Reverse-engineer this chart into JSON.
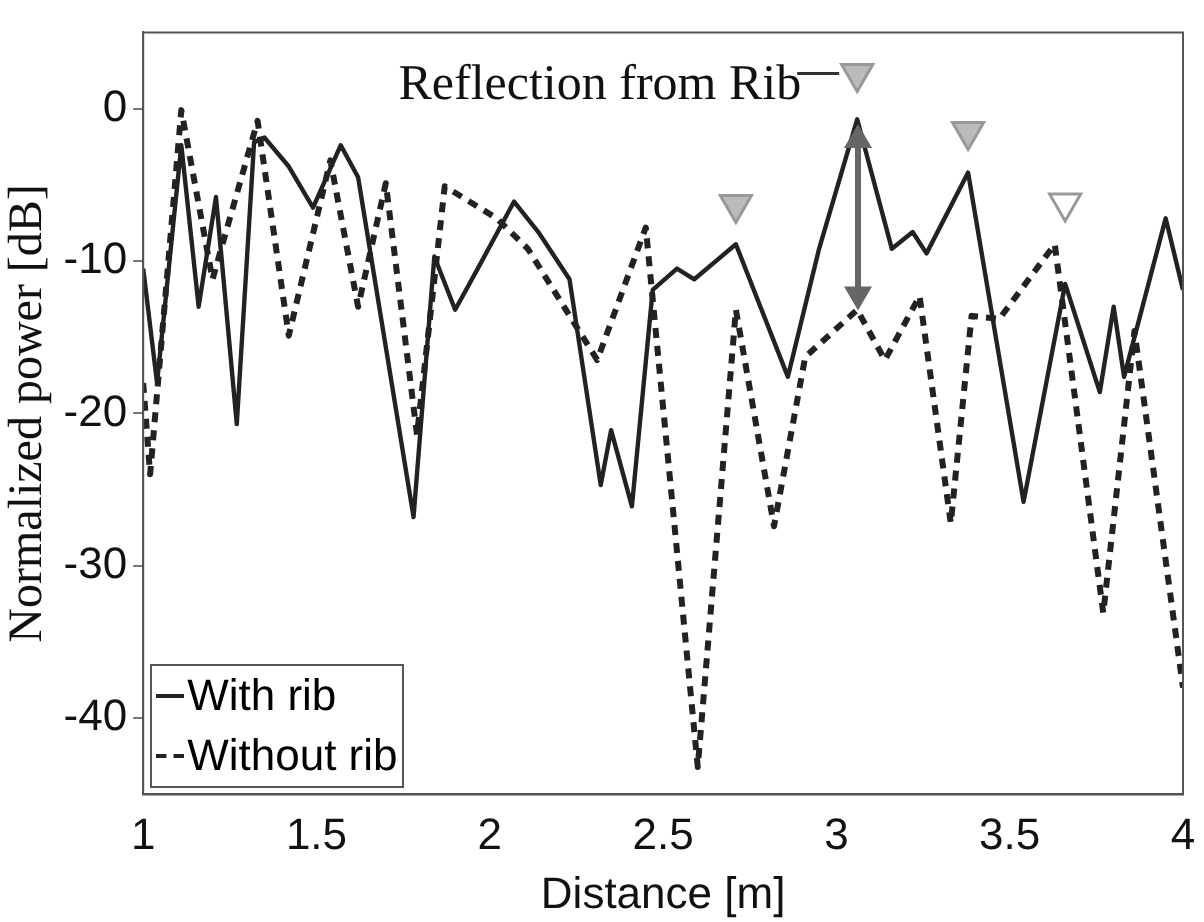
{
  "chart_data": {
    "type": "line",
    "xlabel": "Distance [m]",
    "ylabel": "Normalized power [dB]",
    "xlim": [
      1,
      4
    ],
    "xticks": [
      1,
      1.5,
      2,
      2.5,
      3,
      3.5,
      4
    ],
    "ylim": [
      -45,
      5
    ],
    "yticks": [
      -40,
      -30,
      -20,
      -10,
      0
    ],
    "legend": "bottom left",
    "grid": false,
    "marker": "none",
    "annotations": [
      {
        "text": "Reflection from Rib",
        "x": 3.06,
        "y": 2.3
      }
    ],
    "series": [
      {
        "name": "With rib",
        "color": "#222222",
        "line_style": "solid",
        "x": [
          1.0,
          1.04,
          1.11,
          1.16,
          1.21,
          1.27,
          1.32,
          1.35,
          1.42,
          1.49,
          1.57,
          1.62,
          1.78,
          1.84,
          1.9,
          1.97,
          2.07,
          2.14,
          2.23,
          2.32,
          2.35,
          2.41,
          2.47,
          2.54,
          2.59,
          2.71,
          2.86,
          2.95,
          3.06,
          3.16,
          3.22,
          3.26,
          3.38,
          3.54,
          3.66,
          3.76,
          3.8,
          3.83,
          3.95,
          4.0
        ],
        "values": [
          -10.5,
          -18,
          -2.4,
          -13,
          -5.8,
          -20.7,
          -2.2,
          -1.9,
          -3.8,
          -6.5,
          -2.4,
          -4.5,
          -26.8,
          -9.7,
          -13.2,
          -10.3,
          -6.1,
          -8.1,
          -11.2,
          -24.7,
          -21.1,
          -26.1,
          -11.9,
          -10.5,
          -11.2,
          -8.9,
          -17.6,
          -9.2,
          -0.7,
          -9.2,
          -8.1,
          -9.5,
          -4.2,
          -25.8,
          -11.5,
          -18.6,
          -13,
          -17.6,
          -7.2,
          -11.9
        ]
      },
      {
        "name": "Without rib",
        "color": "#222222",
        "line_style": "dashed",
        "x": [
          1.0,
          1.02,
          1.11,
          1.2,
          1.33,
          1.42,
          1.54,
          1.62,
          1.7,
          1.79,
          1.87,
          2.02,
          2.11,
          2.31,
          2.45,
          2.6,
          2.71,
          2.82,
          2.91,
          3.06,
          3.14,
          3.24,
          3.33,
          3.39,
          3.47,
          3.63,
          3.77,
          3.86,
          4.0
        ],
        "values": [
          -18,
          -24,
          -0.1,
          -11.2,
          -0.8,
          -14.9,
          -3.4,
          -13,
          -4.9,
          -21.4,
          -5.1,
          -7.2,
          -9.2,
          -16.5,
          -7.8,
          -43.2,
          -13.2,
          -27.4,
          -16.3,
          -13.2,
          -16.5,
          -12.3,
          -27.2,
          -13.6,
          -13.8,
          -8.9,
          -33.1,
          -14.6,
          -38
        ]
      },
      {
        "type": "scatter",
        "color": "#999999",
        "marker": "triangle",
        "colors": [
          "#bbbbbb",
          "#bbbbbb",
          "#bbbbbb",
          "#ffffff"
        ],
        "x": [
          2.71,
          3.06,
          3.38,
          3.66
        ],
        "values": [
          -6.3,
          2.3,
          -1.5,
          -6.2
        ]
      }
    ]
  }
}
